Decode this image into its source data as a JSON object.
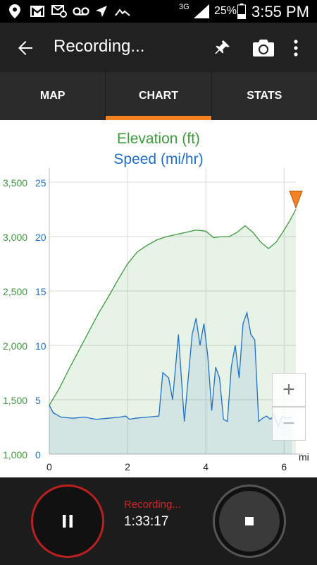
{
  "status_bar": {
    "network": "3G",
    "battery": "25%",
    "time": "3:55 PM"
  },
  "app_bar": {
    "title": "Recording..."
  },
  "tabs": [
    {
      "label": "MAP",
      "active": false
    },
    {
      "label": "CHART",
      "active": true
    },
    {
      "label": "STATS",
      "active": false
    }
  ],
  "chart": {
    "elevation_label": "Elevation (ft)",
    "speed_label": "Speed (mi/hr)",
    "x_unit": "mi"
  },
  "chart_data": {
    "type": "area",
    "x_label_unit": "mi",
    "xlim": [
      0,
      6.3
    ],
    "x_ticks": [
      0,
      2,
      4,
      6
    ],
    "elevation_ticks": [
      "1,000",
      "1,500",
      "2,000",
      "2,500",
      "3,000",
      "3,500"
    ],
    "elevation_tick_values": [
      1000,
      1500,
      2000,
      2500,
      3000,
      3500
    ],
    "speed_ticks": [
      "0",
      "5",
      "10",
      "15",
      "20",
      "25"
    ],
    "speed_tick_values": [
      0,
      5,
      10,
      15,
      20,
      25
    ],
    "grid": true,
    "series": [
      {
        "name": "Elevation (ft)",
        "color": "#3c9a3c",
        "x": [
          0,
          0.25,
          0.5,
          0.75,
          1.0,
          1.25,
          1.5,
          1.75,
          2.0,
          2.25,
          2.5,
          2.75,
          3.0,
          3.25,
          3.5,
          3.75,
          4.0,
          4.2,
          4.4,
          4.6,
          4.8,
          5.0,
          5.2,
          5.4,
          5.6,
          5.8,
          6.0,
          6.15,
          6.3
        ],
        "y": [
          1450,
          1600,
          1780,
          1950,
          2120,
          2290,
          2440,
          2600,
          2750,
          2860,
          2920,
          2970,
          3000,
          3020,
          3040,
          3060,
          3050,
          2990,
          3000,
          3000,
          3040,
          3100,
          3040,
          2950,
          2890,
          2950,
          3060,
          3150,
          3250
        ]
      },
      {
        "name": "Speed (mi/hr)",
        "color": "#1f6fc9",
        "x": [
          0,
          0.1,
          0.3,
          0.6,
          0.9,
          1.2,
          1.5,
          1.8,
          1.95,
          2.05,
          2.2,
          2.5,
          2.8,
          2.9,
          3.05,
          3.15,
          3.3,
          3.45,
          3.55,
          3.65,
          3.75,
          3.85,
          3.95,
          4.05,
          4.15,
          4.25,
          4.35,
          4.45,
          4.55,
          4.65,
          4.75,
          4.85,
          4.95,
          5.05,
          5.15,
          5.25,
          5.35,
          5.45,
          5.55,
          5.65,
          5.75,
          5.85,
          5.95,
          6.05,
          6.2
        ],
        "y": [
          4.5,
          3.8,
          3.4,
          3.3,
          3.4,
          3.2,
          3.3,
          3.4,
          3.5,
          3.2,
          3.3,
          3.4,
          3.5,
          7.5,
          7.0,
          5.0,
          11.0,
          3.0,
          7.0,
          11.0,
          12.5,
          10.0,
          12.0,
          9.0,
          4.0,
          8.0,
          7.0,
          3.2,
          3.0,
          8.0,
          10.0,
          7.0,
          12.0,
          13.0,
          11.0,
          10.5,
          3.0,
          3.3,
          3.5,
          3.2,
          3.6,
          2.5,
          3.5,
          3.3,
          3.4
        ]
      }
    ]
  },
  "bottom_bar": {
    "status": "Recording...",
    "elapsed": "1:33:17"
  },
  "colors": {
    "accent": "#f58220",
    "elevation": "#3c9a3c",
    "speed": "#1f6fc9",
    "recording": "#c42a2a"
  }
}
